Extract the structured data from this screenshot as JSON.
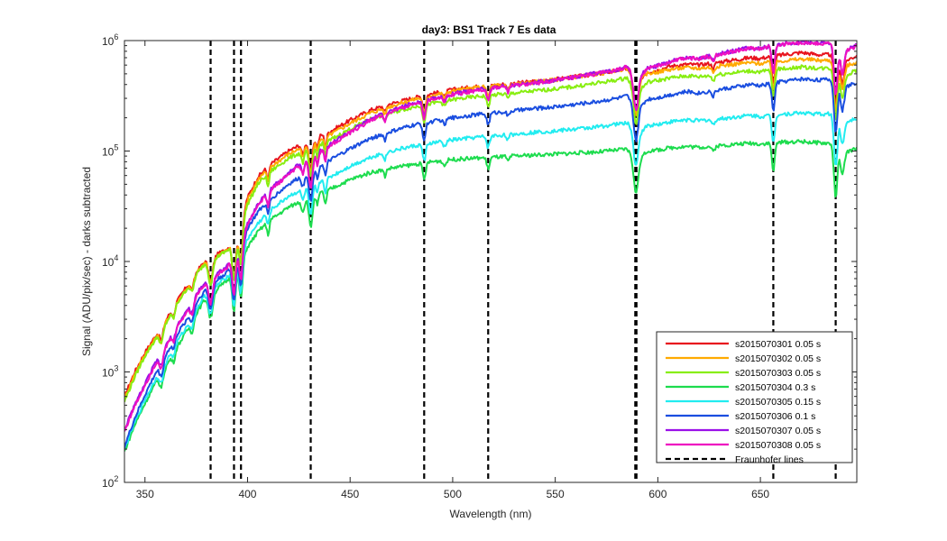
{
  "chart_data": {
    "type": "line",
    "title": "day3: BS1  Track 7 Es data",
    "xlabel": "Wavelength (nm)",
    "ylabel": "Signal (ADU/pix/sec) - darks subtracted",
    "xlim": [
      340,
      697
    ],
    "ylim": [
      100,
      1000000
    ],
    "yscale": "log",
    "grid": false,
    "legend_position": "bottom-right",
    "x_ticks": [
      350,
      400,
      450,
      500,
      550,
      600,
      650
    ],
    "y_ticks": [
      {
        "value": 100,
        "base": "10",
        "exp": "2"
      },
      {
        "value": 1000,
        "base": "10",
        "exp": "3"
      },
      {
        "value": 10000,
        "base": "10",
        "exp": "4"
      },
      {
        "value": 100000,
        "base": "10",
        "exp": "5"
      },
      {
        "value": 1000000,
        "base": "10",
        "exp": "6"
      }
    ],
    "fraunhofer_lines": {
      "name": "Fraunhofer lines",
      "color": "#000000",
      "x": [
        382,
        393.4,
        396.8,
        430.8,
        486.1,
        517.3,
        589.0,
        589.6,
        656.3,
        686.7
      ]
    },
    "profile_x": [
      340,
      345,
      350,
      355,
      360,
      365,
      370,
      375,
      380,
      385,
      390,
      395,
      400,
      405,
      410,
      420,
      430,
      440,
      450,
      460,
      470,
      480,
      490,
      500,
      510,
      520,
      530,
      540,
      550,
      560,
      570,
      580,
      585,
      590,
      595,
      600,
      605,
      610,
      615,
      620,
      630,
      640,
      645,
      650,
      655,
      660,
      670,
      680,
      685,
      690,
      697
    ],
    "series": [
      {
        "name": "s2015070301 0.05 s",
        "color": "#e8141e",
        "values": [
          600,
          1000,
          1500,
          2100,
          2900,
          4200,
          5800,
          8000,
          10500,
          11500,
          13000,
          17000,
          38000,
          58000,
          73000,
          100000,
          125000,
          150000,
          190000,
          235000,
          268000,
          300000,
          330000,
          360000,
          380000,
          395000,
          410000,
          425000,
          445000,
          470000,
          500000,
          535000,
          560000,
          430000,
          520000,
          540000,
          580000,
          600000,
          610000,
          600000,
          640000,
          680000,
          700000,
          690000,
          720000,
          740000,
          780000,
          740000,
          750000,
          640000,
          730000
        ]
      },
      {
        "name": "s2015070302 0.05 s",
        "color": "#ffaa00",
        "values": [
          570,
          960,
          1450,
          2000,
          2800,
          4100,
          5600,
          7800,
          10200,
          11200,
          12700,
          16500,
          36000,
          55000,
          69000,
          94000,
          117000,
          140000,
          178000,
          222000,
          255000,
          290000,
          320000,
          350000,
          372000,
          390000,
          405000,
          420000,
          442000,
          468000,
          498000,
          532000,
          560000,
          420000,
          505000,
          520000,
          545000,
          560000,
          570000,
          560000,
          590000,
          620000,
          630000,
          620000,
          640000,
          655000,
          680000,
          660000,
          665000,
          570000,
          640000
        ]
      },
      {
        "name": "s2015070303 0.05 s",
        "color": "#88ee11",
        "values": [
          540,
          900,
          1400,
          1950,
          2700,
          4000,
          5500,
          7600,
          10000,
          11000,
          12500,
          16000,
          33000,
          50000,
          63000,
          86000,
          105000,
          125000,
          158000,
          195000,
          222000,
          248000,
          270000,
          292000,
          308000,
          322000,
          335000,
          350000,
          365000,
          385000,
          410000,
          440000,
          460000,
          340000,
          420000,
          435000,
          455000,
          470000,
          480000,
          470000,
          495000,
          520000,
          530000,
          520000,
          540000,
          555000,
          575000,
          560000,
          565000,
          470000,
          540000
        ]
      },
      {
        "name": "s2015070304 0.3 s",
        "color": "#1ddc4e",
        "values": [
          190,
          330,
          520,
          780,
          1100,
          1600,
          2300,
          3400,
          4800,
          5600,
          6700,
          9000,
          13500,
          18500,
          23000,
          31000,
          38000,
          45000,
          55000,
          64000,
          70000,
          75000,
          80000,
          84000,
          86000,
          88000,
          90000,
          92000,
          94000,
          96000,
          98000,
          102000,
          104000,
          80000,
          100000,
          102000,
          106000,
          109000,
          110000,
          108000,
          112000,
          116000,
          118000,
          116000,
          118000,
          120000,
          122000,
          118000,
          117000,
          95000,
          105000
        ]
      },
      {
        "name": "s2015070305 0.15 s",
        "color": "#22ecf0",
        "values": [
          200,
          350,
          560,
          850,
          1200,
          1800,
          2500,
          3700,
          5200,
          6100,
          7300,
          9800,
          16000,
          22000,
          28000,
          39000,
          48000,
          58000,
          73000,
          88000,
          100000,
          110000,
          118000,
          126000,
          132000,
          137000,
          142000,
          148000,
          152000,
          158000,
          165000,
          175000,
          180000,
          140000,
          170000,
          175000,
          182000,
          188000,
          192000,
          188000,
          195000,
          205000,
          210000,
          205000,
          210000,
          215000,
          222000,
          215000,
          218000,
          180000,
          200000
        ]
      },
      {
        "name": "s2015070306 0.1 s",
        "color": "#1a4ee0",
        "values": [
          210,
          380,
          620,
          960,
          1400,
          2100,
          2900,
          4200,
          5800,
          6800,
          8000,
          11000,
          20000,
          28000,
          35000,
          50000,
          65000,
          82000,
          105000,
          130000,
          150000,
          170000,
          185000,
          200000,
          212000,
          222000,
          232000,
          242000,
          252000,
          265000,
          280000,
          300000,
          315000,
          240000,
          295000,
          305000,
          320000,
          335000,
          345000,
          335000,
          360000,
          385000,
          400000,
          390000,
          410000,
          425000,
          450000,
          440000,
          445000,
          370000,
          420000
        ]
      },
      {
        "name": "s2015070307 0.05 s",
        "color": "#9a10e8",
        "values": [
          300,
          500,
          780,
          1200,
          1700,
          2500,
          3500,
          5000,
          6800,
          7800,
          9000,
          13000,
          22000,
          33000,
          43000,
          64000,
          88000,
          115000,
          150000,
          195000,
          230000,
          268000,
          300000,
          330000,
          355000,
          375000,
          395000,
          415000,
          440000,
          470000,
          505000,
          545000,
          580000,
          450000,
          560000,
          590000,
          640000,
          680000,
          700000,
          690000,
          760000,
          830000,
          860000,
          850000,
          900000,
          930000,
          970000,
          950000,
          960000,
          800000,
          900000
        ]
      },
      {
        "name": "s2015070308 0.05 s",
        "color": "#ee10c0",
        "values": [
          290,
          490,
          760,
          1170,
          1650,
          2450,
          3400,
          4900,
          6600,
          7600,
          8800,
          12700,
          21500,
          32000,
          42000,
          62000,
          85000,
          112000,
          146000,
          190000,
          225000,
          262000,
          295000,
          325000,
          350000,
          370000,
          390000,
          410000,
          435000,
          465000,
          500000,
          540000,
          575000,
          445000,
          555000,
          585000,
          635000,
          675000,
          695000,
          685000,
          750000,
          820000,
          850000,
          840000,
          890000,
          920000,
          960000,
          940000,
          950000,
          790000,
          890000
        ]
      }
    ]
  }
}
